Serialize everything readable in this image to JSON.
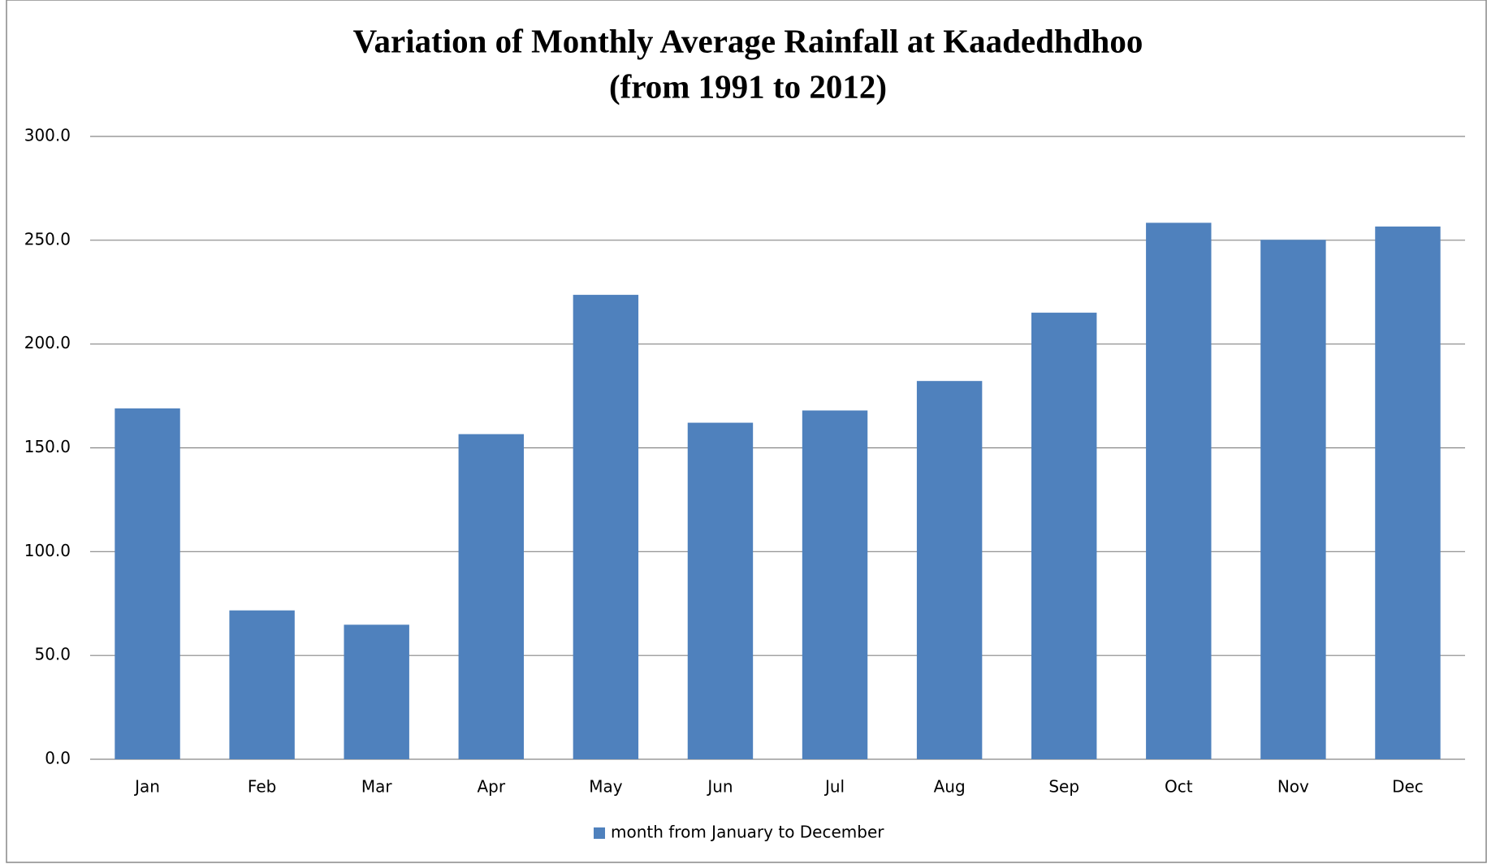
{
  "chart_data": {
    "type": "bar",
    "title": "Variation of Monthly Average Rainfall at Kaadedhdhoo",
    "subtitle": "(from 1991 to 2012)",
    "categories": [
      "Jan",
      "Feb",
      "Mar",
      "Apr",
      "May",
      "Jun",
      "Jul",
      "Aug",
      "Sep",
      "Oct",
      "Nov",
      "Dec"
    ],
    "series": [
      {
        "name": "month from January to December",
        "color": "#4f81bd",
        "values": [
          169.0,
          71.7,
          64.8,
          156.6,
          223.7,
          162.1,
          168.0,
          182.2,
          215.1,
          258.4,
          250.2,
          256.6
        ]
      }
    ],
    "ylim": [
      0,
      300
    ],
    "yticks": [
      {
        "value": 0,
        "label": "0.0"
      },
      {
        "value": 50,
        "label": "50.0"
      },
      {
        "value": 100,
        "label": "100.0"
      },
      {
        "value": 150,
        "label": "150.0"
      },
      {
        "value": 200,
        "label": "200.0"
      },
      {
        "value": 250,
        "label": "250.0"
      },
      {
        "value": 300,
        "label": "300.0"
      }
    ],
    "grid": true,
    "legend": "bottom"
  }
}
